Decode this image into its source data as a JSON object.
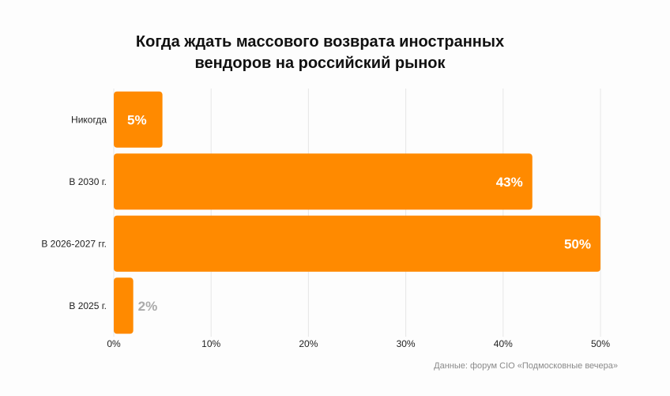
{
  "chart_data": {
    "type": "bar",
    "orientation": "horizontal",
    "title_lines": [
      "Когда ждать массового возврата иностранных",
      "вендоров на российский рынок"
    ],
    "categories": [
      "Никогда",
      "В 2030 г.",
      "В 2026-2027 гг.",
      "В 2025 г."
    ],
    "values": [
      5,
      43,
      50,
      2
    ],
    "value_labels": [
      "5%",
      "43%",
      "50%",
      "2%"
    ],
    "x_ticks": [
      0,
      10,
      20,
      30,
      40,
      50
    ],
    "x_tick_labels": [
      "0%",
      "10%",
      "20%",
      "30%",
      "40%",
      "50%"
    ],
    "xlim": [
      0,
      50
    ],
    "grid": true,
    "colors": {
      "bar": "#ff8a00",
      "label_inside": "#ffffff",
      "label_outside": "#aaaaaa"
    }
  },
  "source": "Данные: форум CIO «Подмосковные вечера»"
}
